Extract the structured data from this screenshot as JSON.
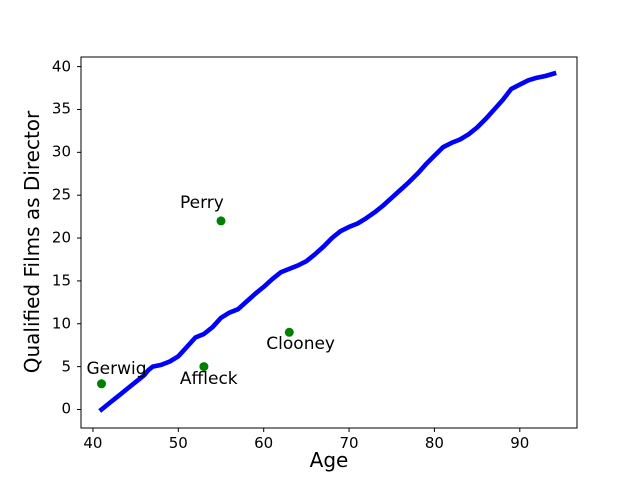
{
  "figure": {
    "background": "#ffffff"
  },
  "chart_data": {
    "type": "line",
    "title": "",
    "xlabel": "Age",
    "ylabel": "Qualified Films as Director",
    "xlim": [
      38.6,
      96.7
    ],
    "ylim": [
      -2.16,
      41.12
    ],
    "xticks": [
      40,
      50,
      60,
      70,
      80,
      90
    ],
    "yticks": [
      0,
      5,
      10,
      15,
      20,
      25,
      30,
      35,
      40
    ],
    "grid": false,
    "legend": false,
    "spine_color": "#000000",
    "tick_color": "#000000",
    "text_color": "#000000",
    "line_series": {
      "name": "qualified-films-by-age",
      "color": "#0000ff",
      "stroke_width": 4.6,
      "points": [
        [
          41,
          0
        ],
        [
          42,
          0.8
        ],
        [
          43,
          1.6
        ],
        [
          44,
          2.4
        ],
        [
          45,
          3.2
        ],
        [
          46,
          4
        ],
        [
          46.5,
          4.6
        ],
        [
          47,
          5
        ],
        [
          48,
          5.2
        ],
        [
          49,
          5.6
        ],
        [
          50,
          6.2
        ],
        [
          51,
          7.3
        ],
        [
          52,
          8.4
        ],
        [
          53,
          8.8
        ],
        [
          54,
          9.6
        ],
        [
          55,
          10.7
        ],
        [
          56,
          11.3
        ],
        [
          57,
          11.7
        ],
        [
          58,
          12.6
        ],
        [
          59,
          13.5
        ],
        [
          60,
          14.3
        ],
        [
          61,
          15.2
        ],
        [
          62,
          16
        ],
        [
          63,
          16.4
        ],
        [
          64,
          16.8
        ],
        [
          65,
          17.3
        ],
        [
          66,
          18.1
        ],
        [
          67,
          19
        ],
        [
          68,
          20
        ],
        [
          69,
          20.8
        ],
        [
          70,
          21.3
        ],
        [
          71,
          21.7
        ],
        [
          72,
          22.3
        ],
        [
          73,
          23
        ],
        [
          74,
          23.8
        ],
        [
          75,
          24.7
        ],
        [
          76,
          25.6
        ],
        [
          77,
          26.5
        ],
        [
          78,
          27.5
        ],
        [
          79,
          28.6
        ],
        [
          80,
          29.6
        ],
        [
          81,
          30.6
        ],
        [
          82,
          31.1
        ],
        [
          83,
          31.5
        ],
        [
          84,
          32.1
        ],
        [
          85,
          32.9
        ],
        [
          86,
          33.9
        ],
        [
          87,
          35
        ],
        [
          88,
          36.1
        ],
        [
          89,
          37.4
        ],
        [
          90,
          37.9
        ],
        [
          91,
          38.4
        ],
        [
          92,
          38.7
        ],
        [
          93,
          38.9
        ],
        [
          94,
          39.2
        ]
      ]
    },
    "scatter_series": {
      "name": "directors",
      "color": "#008000",
      "dot_radius": 4.5,
      "points": [
        {
          "label": "Gerwig",
          "x": 41,
          "y": 3,
          "label_offset": [
            -15,
            -23
          ]
        },
        {
          "label": "Affleck",
          "x": 53,
          "y": 5,
          "label_offset": [
            -24,
            4
          ]
        },
        {
          "label": "Perry",
          "x": 55,
          "y": 22,
          "label_offset": [
            -41,
            -26
          ]
        },
        {
          "label": "Clooney",
          "x": 63,
          "y": 9,
          "label_offset": [
            -23,
            4
          ]
        }
      ]
    }
  }
}
